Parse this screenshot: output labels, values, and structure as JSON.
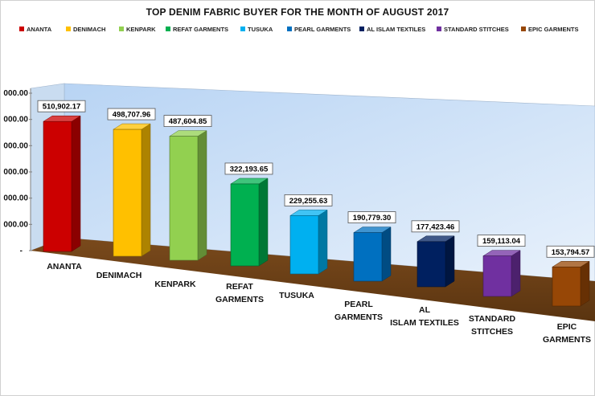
{
  "chart_data": {
    "type": "bar",
    "title": "TOP DENIM FABRIC BUYER FOR THE MONTH OF AUGUST 2017",
    "categories": [
      "ANANTA",
      "DENIMACH",
      "KENPARK",
      "REFAT GARMENTS",
      "TUSUKA",
      "PEARL GARMENTS",
      "AL ISLAM TEXTILES",
      "STANDARD STITCHES",
      "EPIC GARMENTS"
    ],
    "legend_labels": [
      "ANANTA",
      "DENIMACH",
      "KENPARK",
      "REFAT GARMENTS",
      "TUSUKA",
      "PEARL GARMENTS",
      "AL ISLAM TEXTILES",
      "STANDARD STITCHES",
      "EPIC GARMENTS"
    ],
    "values": [
      510902.17,
      498707.96,
      487604.85,
      322193.65,
      229255.63,
      190779.3,
      177423.46,
      159113.04,
      153794.57
    ],
    "value_labels": [
      "510,902.17",
      "498,707.96",
      "487,604.85",
      "322,193.65",
      "229,255.63",
      "190,779.30",
      "177,423.46",
      "159,113.04",
      "153,794.57"
    ],
    "colors": [
      "#cc0000",
      "#ffc000",
      "#92d050",
      "#00b050",
      "#00b0f0",
      "#0070c0",
      "#002060",
      "#7030a0",
      "#974706"
    ],
    "y_tick_labels": [
      "-",
      "000.00",
      "000.00",
      "000.00",
      "000.00",
      "000.00",
      "000.00"
    ],
    "ylim": [
      0,
      600000
    ],
    "legend_position": "top",
    "grid": false,
    "three_d": true
  }
}
